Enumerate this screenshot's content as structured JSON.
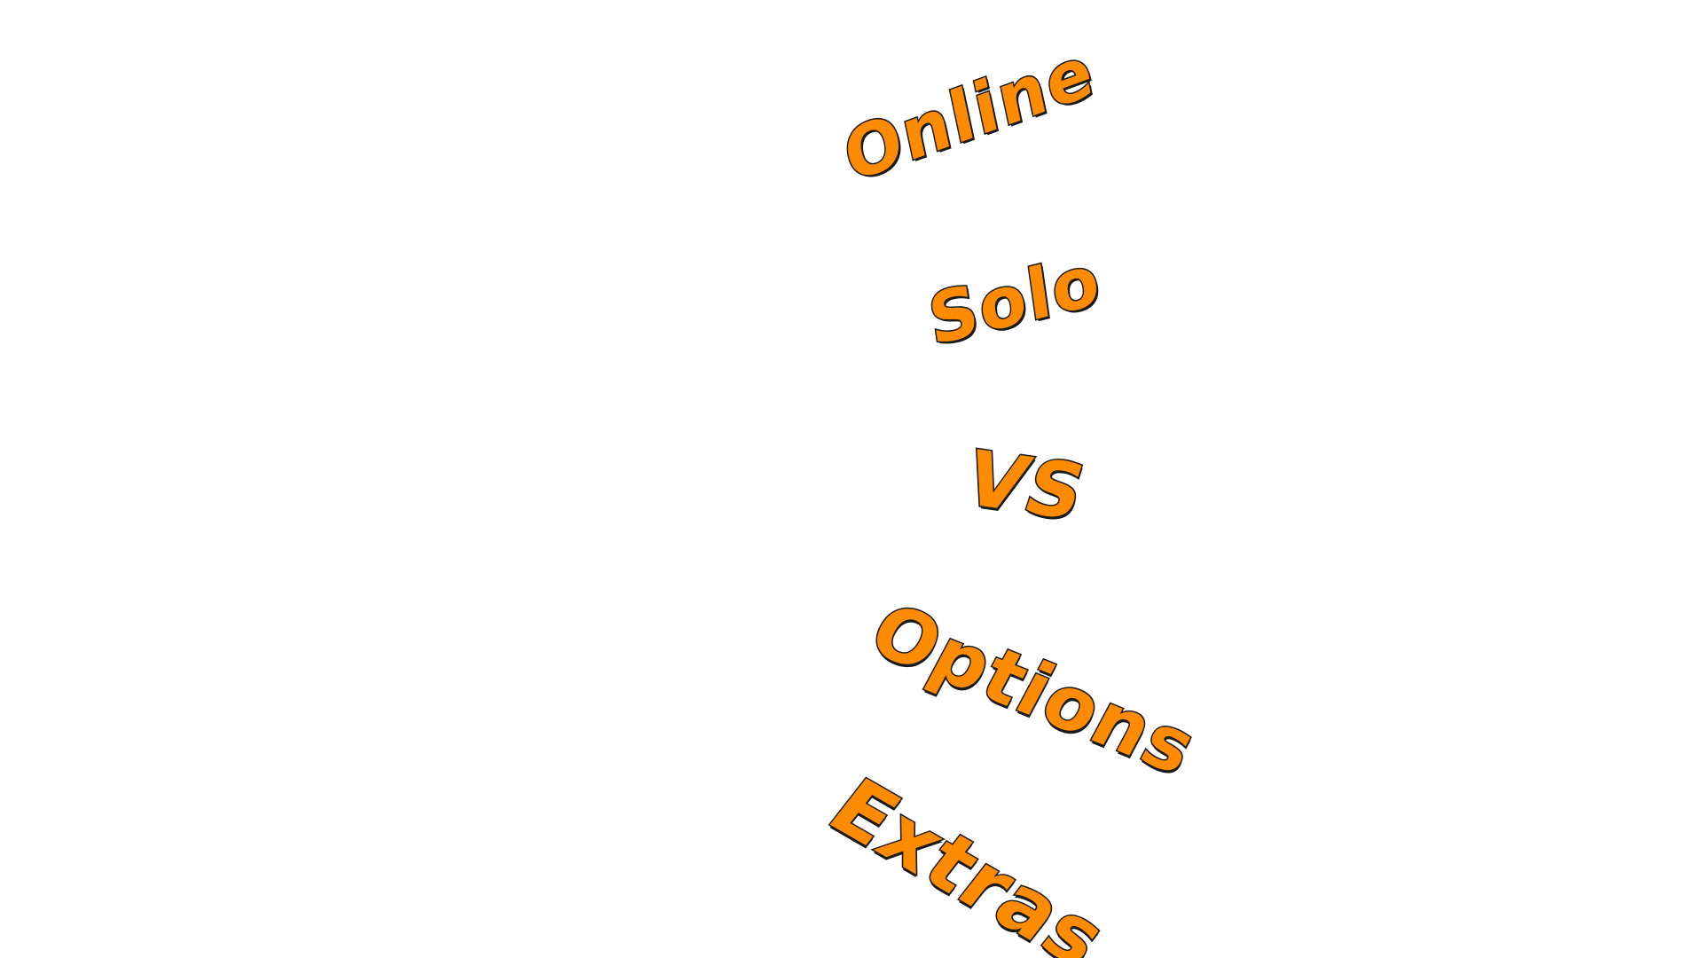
{
  "main_menu": {
    "items": [
      {
        "id": "online",
        "label": "Online"
      },
      {
        "id": "solo",
        "label": "Solo"
      },
      {
        "id": "vs",
        "label": "VS"
      },
      {
        "id": "options",
        "label": "Options"
      },
      {
        "id": "extras",
        "label": "Extras"
      }
    ]
  },
  "colors": {
    "background": "#ffffff",
    "label_fill": "#ff8c00",
    "label_outline": "#1a1a1a"
  }
}
